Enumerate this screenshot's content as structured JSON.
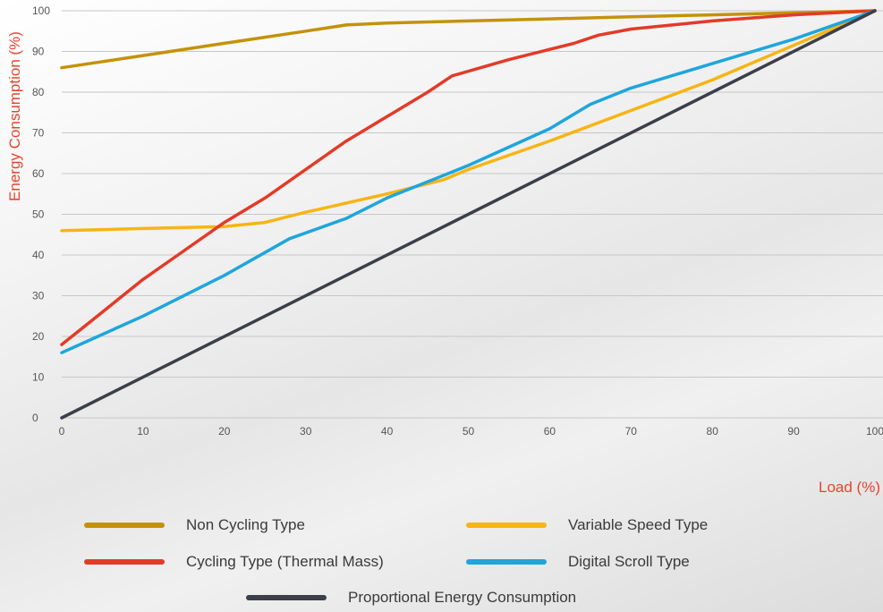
{
  "chart_data": {
    "type": "line",
    "xlabel": "Load (%)",
    "ylabel": "Energy Consumption (%)",
    "xlim": [
      0,
      100
    ],
    "ylim": [
      0,
      100
    ],
    "x_ticks": [
      "0",
      "10",
      "20",
      "30",
      "40",
      "50",
      "60",
      "70",
      "80",
      "90",
      "100"
    ],
    "y_ticks": [
      "0",
      "10",
      "20",
      "30",
      "40",
      "50",
      "60",
      "70",
      "80",
      "90",
      "100"
    ],
    "grid": "horizontal",
    "label_color": "#e8432e",
    "series": [
      {
        "name": "Non Cycling Type",
        "color": "#c4920a",
        "points": [
          [
            0,
            86
          ],
          [
            10,
            89
          ],
          [
            20,
            92
          ],
          [
            30,
            95
          ],
          [
            35,
            96.5
          ],
          [
            40,
            97
          ],
          [
            50,
            97.5
          ],
          [
            60,
            98
          ],
          [
            70,
            98.5
          ],
          [
            80,
            99
          ],
          [
            90,
            99.5
          ],
          [
            100,
            100
          ]
        ]
      },
      {
        "name": "Variable Speed Type",
        "color": "#f7b514",
        "points": [
          [
            0,
            46
          ],
          [
            10,
            46.5
          ],
          [
            20,
            47
          ],
          [
            25,
            48
          ],
          [
            30,
            50.5
          ],
          [
            40,
            55
          ],
          [
            47,
            58.5
          ],
          [
            50,
            61
          ],
          [
            60,
            68
          ],
          [
            70,
            75.5
          ],
          [
            80,
            83
          ],
          [
            90,
            91.5
          ],
          [
            100,
            100
          ]
        ]
      },
      {
        "name": "Cycling Type (Thermal Mass)",
        "color": "#e23b28",
        "points": [
          [
            0,
            18
          ],
          [
            5,
            26
          ],
          [
            10,
            34
          ],
          [
            15,
            41
          ],
          [
            20,
            48
          ],
          [
            25,
            54
          ],
          [
            30,
            61
          ],
          [
            35,
            68
          ],
          [
            40,
            74
          ],
          [
            45,
            80
          ],
          [
            48,
            84
          ],
          [
            55,
            88
          ],
          [
            63,
            92
          ],
          [
            66,
            94
          ],
          [
            70,
            95.5
          ],
          [
            80,
            97.5
          ],
          [
            90,
            99
          ],
          [
            100,
            100
          ]
        ]
      },
      {
        "name": "Digital Scroll Type",
        "color": "#1ea6dc",
        "points": [
          [
            0,
            16
          ],
          [
            10,
            25
          ],
          [
            20,
            35
          ],
          [
            28,
            44
          ],
          [
            35,
            49
          ],
          [
            40,
            54
          ],
          [
            50,
            62
          ],
          [
            60,
            71
          ],
          [
            65,
            77
          ],
          [
            70,
            81
          ],
          [
            80,
            87
          ],
          [
            90,
            93
          ],
          [
            100,
            100
          ]
        ]
      },
      {
        "name": "Proportional Energy Consumption",
        "color": "#3c3e4a",
        "points": [
          [
            0,
            0
          ],
          [
            100,
            100
          ]
        ]
      }
    ]
  }
}
